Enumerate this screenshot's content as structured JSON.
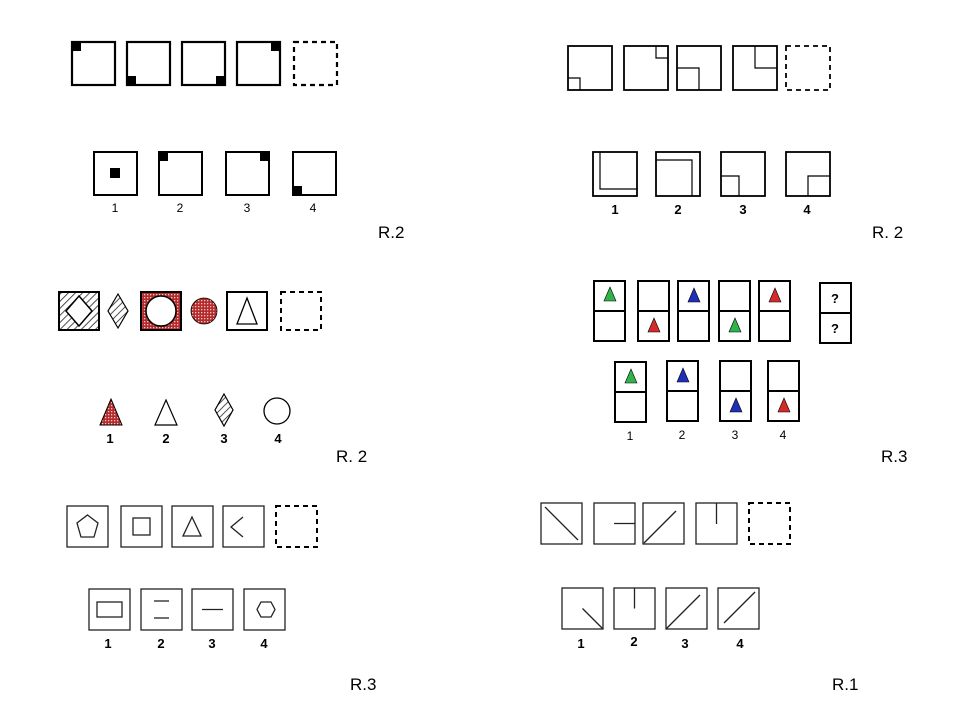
{
  "colors": {
    "ink": "#000000",
    "green": "#2fb34a",
    "red": "#d42a2a",
    "blue": "#1f2fb8",
    "redhatch": "#c23a3a"
  },
  "puzzle1": {
    "labels": [
      "1",
      "2",
      "3",
      "4"
    ],
    "answer": "R.2"
  },
  "puzzle2": {
    "labels": [
      "1",
      "2",
      "3",
      "4"
    ],
    "answer": "R. 2"
  },
  "puzzle3": {
    "labels": [
      "1",
      "2",
      "3",
      "4"
    ],
    "answer": "R. 2"
  },
  "puzzle4": {
    "unknown_marks": [
      "?",
      "?"
    ],
    "labels": [
      "1",
      "2",
      "3",
      "4"
    ],
    "answer": "R.3"
  },
  "puzzle5": {
    "labels": [
      "1",
      "2",
      "3",
      "4"
    ],
    "answer": "R.3"
  },
  "puzzle6": {
    "labels": [
      "1",
      "2",
      "3",
      "4"
    ],
    "answer": "R.1"
  }
}
